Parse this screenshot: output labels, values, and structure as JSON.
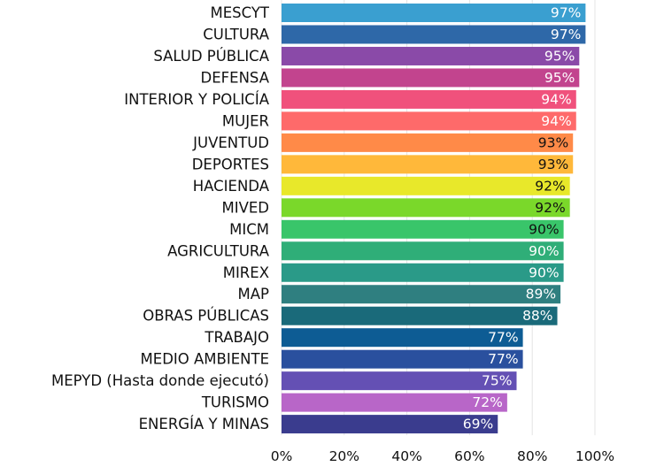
{
  "chart_data": {
    "type": "bar",
    "orientation": "horizontal",
    "categories": [
      "MESCYT",
      "CULTURA",
      "SALUD PÚBLICA",
      "DEFENSA",
      "INTERIOR Y POLICÍA",
      "MUJER",
      "JUVENTUD",
      "DEPORTES",
      "HACIENDA",
      "MIVED",
      "MICM",
      "AGRICULTURA",
      "MIREX",
      "MAP",
      "OBRAS PÚBLICAS",
      "TRABAJO",
      "MEDIO AMBIENTE",
      "MEPYD (Hasta donde ejecutó)",
      "TURISMO",
      "ENERGÍA Y MINAS"
    ],
    "values": [
      97,
      97,
      95,
      95,
      94,
      94,
      93,
      93,
      92,
      92,
      90,
      90,
      90,
      89,
      88,
      77,
      77,
      75,
      72,
      69
    ],
    "value_labels": [
      "97%",
      "97%",
      "95%",
      "95%",
      "94%",
      "94%",
      "93%",
      "93%",
      "92%",
      "92%",
      "90%",
      "90%",
      "90%",
      "89%",
      "88%",
      "77%",
      "77%",
      "75%",
      "72%",
      "69%"
    ],
    "colors": [
      "#3a9fd0",
      "#2e68a8",
      "#8a4aa8",
      "#c2448e",
      "#f0517c",
      "#fe6a6a",
      "#ff8a48",
      "#ffb83a",
      "#e8e82a",
      "#7ad82a",
      "#39c56a",
      "#2fae78",
      "#2a9a88",
      "#2f7f80",
      "#1a6a7a",
      "#0d5c94",
      "#2a509e",
      "#6450b4",
      "#b866c8",
      "#3a3c8e"
    ],
    "label_colors": [
      "#ffffff",
      "#ffffff",
      "#ffffff",
      "#ffffff",
      "#ffffff",
      "#ffffff",
      "#111111",
      "#111111",
      "#111111",
      "#111111",
      "#111111",
      "#ffffff",
      "#ffffff",
      "#ffffff",
      "#ffffff",
      "#ffffff",
      "#ffffff",
      "#ffffff",
      "#ffffff",
      "#ffffff"
    ],
    "xlim": [
      0,
      100
    ],
    "xticks": [
      "0%",
      "20%",
      "40%",
      "60%",
      "80%",
      "100%"
    ],
    "grid": true,
    "legend": "none"
  }
}
